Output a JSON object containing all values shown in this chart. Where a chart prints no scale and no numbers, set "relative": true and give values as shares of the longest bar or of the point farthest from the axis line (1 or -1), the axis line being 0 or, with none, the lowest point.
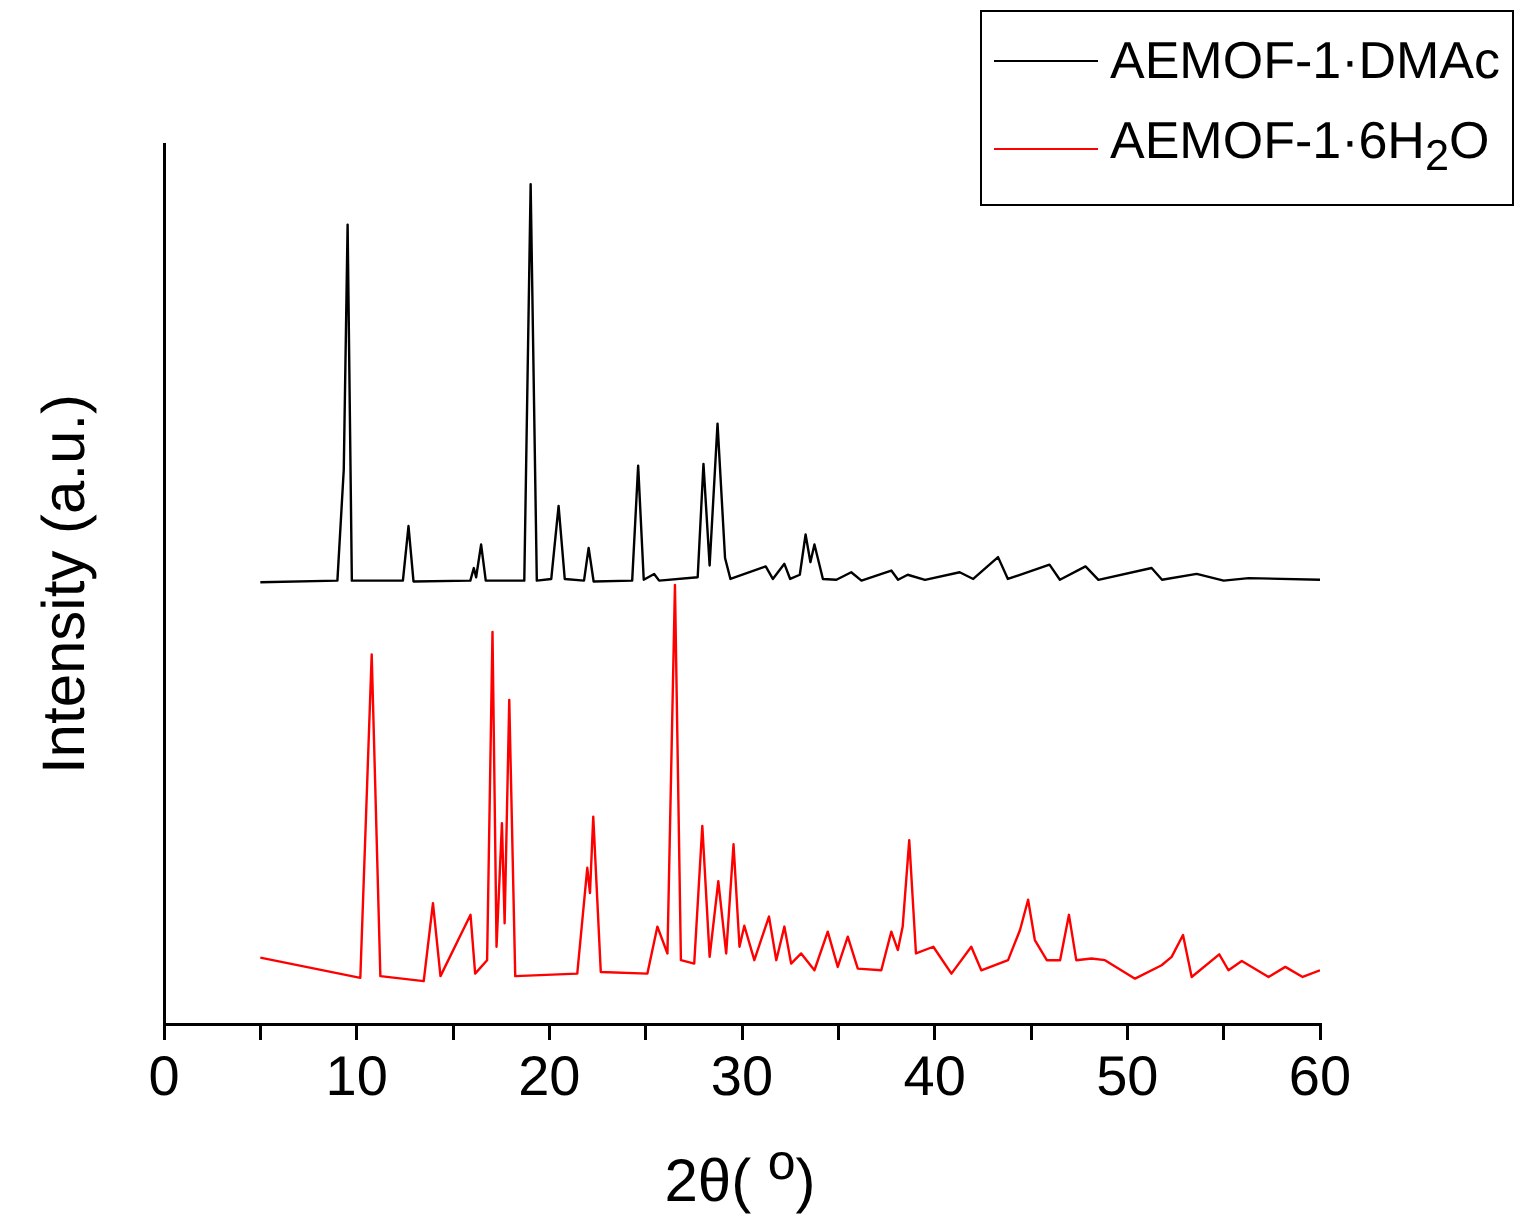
{
  "chart_data": {
    "type": "line",
    "relative": true,
    "xlabel": "2θ( $^{o}$)",
    "ylabel": "Intensity (a.u.)",
    "xlim": [
      0,
      60
    ],
    "xticks": [
      0,
      {
        "value": 5,
        "label": null
      },
      10,
      {
        "value": 15,
        "label": null
      },
      20,
      {
        "value": 25,
        "label": null
      },
      30,
      {
        "value": 35,
        "label": null
      },
      40,
      {
        "value": 45,
        "label": null
      },
      50,
      {
        "value": 55,
        "label": null
      },
      60
    ],
    "grid": false,
    "legend": "top right",
    "marker": "none",
    "line_style": "solid",
    "series": [
      {
        "name": "AEMOF-1·DMAc",
        "color": "#000000",
        "x": [
          5,
          9.0,
          9.33,
          9.53,
          9.75,
          12.4,
          12.69,
          12.95,
          15.9,
          16.08,
          16.2,
          16.46,
          16.7,
          18.7,
          19.03,
          19.35,
          20.1,
          20.48,
          20.8,
          21.8,
          22.04,
          22.3,
          24.3,
          24.61,
          24.9,
          25.44,
          25.7,
          27.7,
          28.0,
          28.32,
          28.73,
          29.12,
          29.4,
          31.23,
          31.6,
          32.2,
          32.5,
          33.0,
          33.3,
          33.55,
          33.76,
          34.2,
          34.9,
          35.67,
          36.2,
          37.75,
          38.1,
          38.6,
          39.5,
          41.3,
          42,
          43.29,
          43.8,
          45.96,
          46.5,
          47.83,
          48.5,
          51.26,
          51.8,
          53.6,
          55,
          56.3,
          60
        ],
        "values": [
          0.526,
          0.528,
          0.66,
          0.952,
          0.528,
          0.528,
          0.593,
          0.527,
          0.528,
          0.543,
          0.532,
          0.571,
          0.528,
          0.528,
          1.0,
          0.528,
          0.53,
          0.617,
          0.53,
          0.528,
          0.567,
          0.527,
          0.528,
          0.665,
          0.529,
          0.536,
          0.528,
          0.532,
          0.667,
          0.546,
          0.715,
          0.555,
          0.53,
          0.545,
          0.53,
          0.548,
          0.53,
          0.535,
          0.583,
          0.55,
          0.571,
          0.53,
          0.529,
          0.538,
          0.528,
          0.54,
          0.529,
          0.535,
          0.529,
          0.538,
          0.53,
          0.556,
          0.53,
          0.547,
          0.529,
          0.545,
          0.529,
          0.543,
          0.529,
          0.536,
          0.528,
          0.531,
          0.529
        ]
      },
      {
        "name": "AEMOF-1·6H$_{2}$O",
        "color": "#ff0000",
        "x": [
          5,
          10.19,
          10.78,
          11.23,
          13.48,
          13.96,
          14.35,
          15.91,
          16.15,
          16.77,
          17.05,
          17.26,
          17.54,
          17.68,
          17.92,
          18.23,
          21.45,
          21.97,
          22.11,
          22.28,
          22.67,
          25.09,
          25.61,
          26.13,
          26.52,
          26.83,
          27.52,
          27.94,
          28.32,
          28.77,
          29.18,
          29.56,
          29.87,
          30.12,
          30.64,
          31.4,
          31.78,
          32.2,
          32.55,
          33.07,
          33.76,
          34.45,
          34.97,
          35.49,
          36.01,
          37.23,
          37.75,
          38.09,
          38.34,
          38.68,
          39.03,
          39.93,
          40.87,
          41.9,
          42.42,
          43.81,
          44.43,
          44.85,
          45.2,
          45.82,
          46.51,
          46.97,
          47.35,
          48.14,
          48.84,
          50.4,
          51.78,
          52.3,
          52.89,
          53.34,
          54.77,
          55.25,
          55.94,
          57.33,
          58.2,
          59.1,
          60
        ],
        "values": [
          0.079,
          0.055,
          0.44,
          0.057,
          0.051,
          0.144,
          0.057,
          0.13,
          0.06,
          0.076,
          0.467,
          0.092,
          0.239,
          0.12,
          0.386,
          0.057,
          0.06,
          0.186,
          0.156,
          0.247,
          0.062,
          0.06,
          0.116,
          0.084,
          0.523,
          0.076,
          0.072,
          0.236,
          0.08,
          0.17,
          0.084,
          0.214,
          0.092,
          0.117,
          0.076,
          0.128,
          0.076,
          0.116,
          0.072,
          0.084,
          0.064,
          0.11,
          0.068,
          0.104,
          0.066,
          0.064,
          0.11,
          0.088,
          0.116,
          0.219,
          0.084,
          0.092,
          0.06,
          0.092,
          0.064,
          0.076,
          0.112,
          0.148,
          0.1,
          0.076,
          0.076,
          0.13,
          0.076,
          0.078,
          0.076,
          0.054,
          0.07,
          0.08,
          0.106,
          0.056,
          0.083,
          0.064,
          0.075,
          0.056,
          0.068,
          0.056,
          0.064
        ]
      }
    ]
  }
}
